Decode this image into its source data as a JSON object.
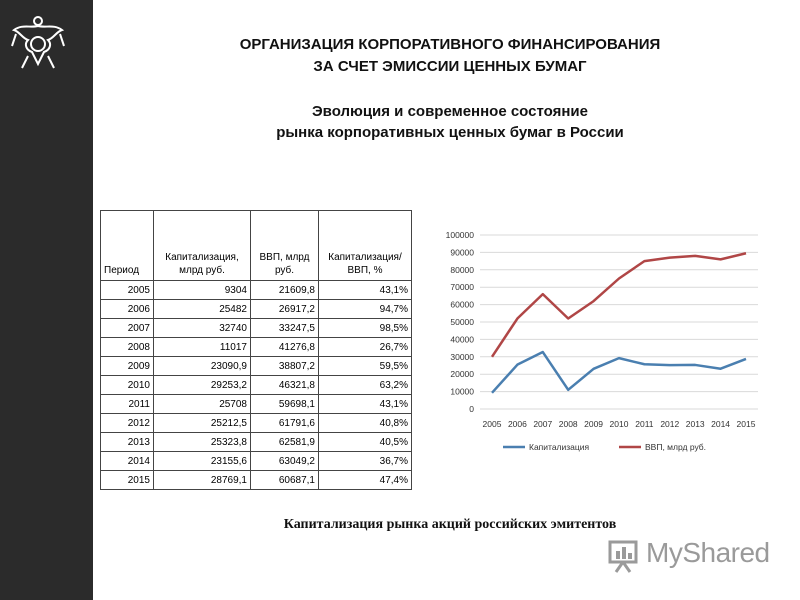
{
  "header": {
    "title_line1": "ОРГАНИЗАЦИЯ КОРПОРАТИВНОГО ФИНАНСИРОВАНИЯ",
    "title_line2": "ЗА СЧЕТ ЭМИССИИ ЦЕННЫХ БУМАГ",
    "subtitle_line1": "Эволюция и современное состояние",
    "subtitle_line2": "рынка корпоративных ценных бумаг в России"
  },
  "table": {
    "headers": [
      "Период",
      "Капитализация, млрд руб.",
      "ВВП, млрд руб.",
      "Капитализация/ ВВП, %"
    ],
    "rows": [
      [
        "2005",
        "9304",
        "21609,8",
        "43,1%"
      ],
      [
        "2006",
        "25482",
        "26917,2",
        "94,7%"
      ],
      [
        "2007",
        "32740",
        "33247,5",
        "98,5%"
      ],
      [
        "2008",
        "11017",
        "41276,8",
        "26,7%"
      ],
      [
        "2009",
        "23090,9",
        "38807,2",
        "59,5%"
      ],
      [
        "2010",
        "29253,2",
        "46321,8",
        "63,2%"
      ],
      [
        "2011",
        "25708",
        "59698,1",
        "43,1%"
      ],
      [
        "2012",
        "25212,5",
        "61791,6",
        "40,8%"
      ],
      [
        "2013",
        "25323,8",
        "62581,9",
        "40,5%"
      ],
      [
        "2014",
        "23155,6",
        "63049,2",
        "36,7%"
      ],
      [
        "2015",
        "28769,1",
        "60687,1",
        "47,4%"
      ]
    ]
  },
  "chart_data": {
    "type": "line",
    "x": [
      "2005",
      "2006",
      "2007",
      "2008",
      "2009",
      "2010",
      "2011",
      "2012",
      "2013",
      "2014",
      "2015"
    ],
    "ylim": [
      0,
      100000
    ],
    "yticks": [
      "0",
      "10000",
      "20000",
      "30000",
      "40000",
      "50000",
      "60000",
      "70000",
      "80000",
      "90000",
      "100000"
    ],
    "grid": true,
    "legend": "bottom",
    "series": [
      {
        "name": "Капитализация",
        "color": "#4a7fb0",
        "values": [
          9304,
          25482,
          32740,
          11017,
          23090.9,
          29253.2,
          25708,
          25212.5,
          25323.8,
          23155.6,
          28769.1
        ]
      },
      {
        "name": "ВВП, млрд руб.",
        "color": "#b04646",
        "values": [
          30000,
          52000,
          66000,
          52000,
          62000,
          75000,
          85000,
          87000,
          88000,
          86000,
          89500
        ]
      }
    ]
  },
  "caption": "Капитализация рынка акций российских эмитентов",
  "watermark": "MyShared"
}
